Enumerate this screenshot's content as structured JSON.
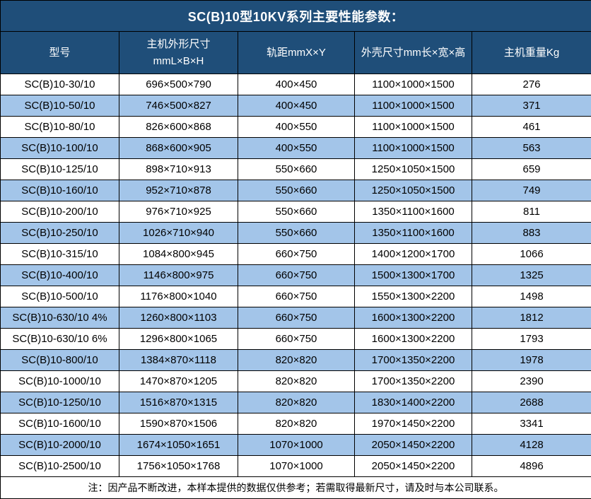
{
  "title": "SC(B)10型10KV系列主要性能参数：",
  "table": {
    "columns": [
      "型号",
      "主机外形尺寸\nmmL×B×H",
      "轨距mmX×Y",
      "外壳尺寸mm长×宽×高",
      "主机重量Kg"
    ],
    "rows": [
      [
        "SC(B)10-30/10",
        "696×500×790",
        "400×450",
        "1100×1000×1500",
        "276"
      ],
      [
        "SC(B)10-50/10",
        "746×500×827",
        "400×450",
        "1100×1000×1500",
        "371"
      ],
      [
        "SC(B)10-80/10",
        "826×600×868",
        "400×550",
        "1100×1000×1500",
        "461"
      ],
      [
        "SC(B)10-100/10",
        "868×600×905",
        "400×550",
        "1100×1000×1500",
        "563"
      ],
      [
        "SC(B)10-125/10",
        "898×710×913",
        "550×660",
        "1250×1050×1500",
        "659"
      ],
      [
        "SC(B)10-160/10",
        "952×710×878",
        "550×660",
        "1250×1050×1500",
        "749"
      ],
      [
        "SC(B)10-200/10",
        "976×710×925",
        "550×660",
        "1350×1100×1600",
        "811"
      ],
      [
        "SC(B)10-250/10",
        "1026×710×940",
        "550×660",
        "1350×1100×1600",
        "883"
      ],
      [
        "SC(B)10-315/10",
        "1084×800×945",
        "660×750",
        "1400×1200×1700",
        "1066"
      ],
      [
        "SC(B)10-400/10",
        "1146×800×975",
        "660×750",
        "1500×1300×1700",
        "1325"
      ],
      [
        "SC(B)10-500/10",
        "1176×800×1040",
        "660×750",
        "1550×1300×2200",
        "1498"
      ],
      [
        "SC(B)10-630/10 4%",
        "1260×800×1103",
        "660×750",
        "1600×1300×2200",
        "1812"
      ],
      [
        "SC(B)10-630/10 6%",
        "1296×800×1065",
        "660×750",
        "1600×1300×2200",
        "1793"
      ],
      [
        "SC(B)10-800/10",
        "1384×870×1118",
        "820×820",
        "1700×1350×2200",
        "1978"
      ],
      [
        "SC(B)10-1000/10",
        "1470×870×1205",
        "820×820",
        "1700×1350×2200",
        "2390"
      ],
      [
        "SC(B)10-1250/10",
        "1516×870×1315",
        "820×820",
        "1830×1400×2200",
        "2688"
      ],
      [
        "SC(B)10-1600/10",
        "1590×870×1506",
        "820×820",
        "1970×1450×2200",
        "3341"
      ],
      [
        "SC(B)10-2000/10",
        "1674×1050×1651",
        "1070×1000",
        "2050×1450×2200",
        "4128"
      ],
      [
        "SC(B)10-2500/10",
        "1756×1050×1768",
        "1070×1000",
        "2050×1450×2200",
        "4896"
      ]
    ]
  },
  "note": "注：因产品不断改进，本样本提供的数据仅供参考；若需取得最新尺寸，请及时与本公司联系。",
  "colors": {
    "header_bg": "#1f4e79",
    "row_alt_bg": "#a3c5e9",
    "border": "#000000",
    "header_text": "#ffffff",
    "body_text": "#000000"
  }
}
